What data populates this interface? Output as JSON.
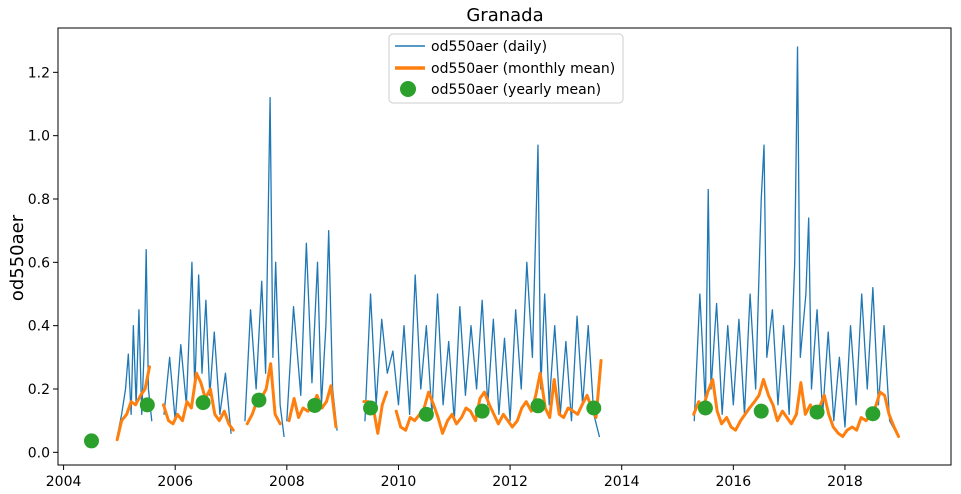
{
  "chart_data": {
    "type": "line",
    "title": "Granada",
    "xlabel": "",
    "ylabel": "od550aer",
    "xlim": [
      2003.9,
      2019.9
    ],
    "ylim": [
      -0.04,
      1.34
    ],
    "x_ticks": [
      2004,
      2006,
      2008,
      2010,
      2012,
      2014,
      2016,
      2018
    ],
    "x_tick_labels": [
      "2004",
      "2006",
      "2008",
      "2010",
      "2012",
      "2014",
      "2016",
      "2018"
    ],
    "y_ticks": [
      0.0,
      0.2,
      0.4,
      0.6,
      0.8,
      1.0,
      1.2
    ],
    "y_tick_labels": [
      "0.0",
      "0.2",
      "0.4",
      "0.6",
      "0.8",
      "1.0",
      "1.2"
    ],
    "grid": false,
    "legend_position": "top-center",
    "legend": [
      "od550aer (daily)",
      "od550aer (monthly mean)",
      "od550aer (yearly mean)"
    ],
    "series": [
      {
        "name": "od550aer (daily)",
        "kind": "line",
        "color": "#1f77b4",
        "segments": [
          {
            "x": [
              2004.95,
              2005.04,
              2005.11,
              2005.16,
              2005.21,
              2005.25,
              2005.3,
              2005.35,
              2005.4,
              2005.45,
              2005.48,
              2005.52,
              2005.58
            ],
            "y": [
              0.04,
              0.12,
              0.2,
              0.31,
              0.12,
              0.4,
              0.15,
              0.45,
              0.12,
              0.35,
              0.64,
              0.2,
              0.1
            ]
          },
          {
            "x": [
              2005.8,
              2005.9,
              2006.0,
              2006.1,
              2006.2,
              2006.3,
              2006.35,
              2006.42,
              2006.48,
              2006.55,
              2006.62,
              2006.7,
              2006.8,
              2006.9,
              2007.0
            ],
            "y": [
              0.12,
              0.3,
              0.1,
              0.34,
              0.15,
              0.6,
              0.2,
              0.56,
              0.25,
              0.48,
              0.18,
              0.38,
              0.12,
              0.25,
              0.06
            ]
          },
          {
            "x": [
              2007.25,
              2007.35,
              2007.45,
              2007.55,
              2007.62,
              2007.68,
              2007.7,
              2007.75,
              2007.8,
              2007.88,
              2007.95
            ],
            "y": [
              0.1,
              0.45,
              0.2,
              0.54,
              0.25,
              0.9,
              1.12,
              0.3,
              0.6,
              0.15,
              0.05
            ]
          },
          {
            "x": [
              2008.0,
              2008.12,
              2008.25,
              2008.35,
              2008.45,
              2008.55,
              2008.62,
              2008.7,
              2008.75,
              2008.82,
              2008.9
            ],
            "y": [
              0.1,
              0.46,
              0.18,
              0.66,
              0.22,
              0.6,
              0.15,
              0.4,
              0.7,
              0.2,
              0.07
            ]
          },
          {
            "x": [
              2009.4,
              2009.5,
              2009.6,
              2009.7,
              2009.8,
              2009.9,
              2010.0,
              2010.1,
              2010.2,
              2010.3,
              2010.4,
              2010.5,
              2010.6,
              2010.7,
              2010.8,
              2010.9,
              2011.0,
              2011.1,
              2011.2,
              2011.3,
              2011.4,
              2011.5,
              2011.6,
              2011.7,
              2011.8,
              2011.9,
              2012.0,
              2012.1,
              2012.2,
              2012.3,
              2012.4,
              2012.5,
              2012.55,
              2012.62,
              2012.7,
              2012.8,
              2012.9,
              2013.0,
              2013.1,
              2013.2,
              2013.3,
              2013.4,
              2013.5,
              2013.6
            ],
            "y": [
              0.1,
              0.5,
              0.15,
              0.42,
              0.25,
              0.32,
              0.15,
              0.4,
              0.12,
              0.56,
              0.2,
              0.4,
              0.12,
              0.5,
              0.15,
              0.35,
              0.1,
              0.46,
              0.18,
              0.4,
              0.2,
              0.48,
              0.15,
              0.42,
              0.12,
              0.36,
              0.1,
              0.45,
              0.2,
              0.6,
              0.3,
              0.97,
              0.2,
              0.5,
              0.15,
              0.4,
              0.12,
              0.35,
              0.1,
              0.43,
              0.15,
              0.4,
              0.12,
              0.05
            ]
          },
          {
            "x": [
              2015.3,
              2015.4,
              2015.5,
              2015.55,
              2015.6,
              2015.7,
              2015.8,
              2015.9,
              2016.0,
              2016.1,
              2016.2,
              2016.3,
              2016.4,
              2016.5,
              2016.55,
              2016.6,
              2016.7,
              2016.8,
              2016.9,
              2017.0,
              2017.1,
              2017.15,
              2017.2,
              2017.3,
              2017.35,
              2017.4,
              2017.5,
              2017.6,
              2017.7,
              2017.8,
              2017.9,
              2018.0,
              2018.1,
              2018.2,
              2018.3,
              2018.4,
              2018.5,
              2018.6,
              2018.7,
              2018.8,
              2018.95
            ],
            "y": [
              0.1,
              0.5,
              0.15,
              0.83,
              0.2,
              0.47,
              0.12,
              0.4,
              0.15,
              0.42,
              0.12,
              0.5,
              0.2,
              0.8,
              0.97,
              0.3,
              0.45,
              0.15,
              0.4,
              0.12,
              0.6,
              1.28,
              0.3,
              0.5,
              0.74,
              0.2,
              0.45,
              0.12,
              0.38,
              0.1,
              0.3,
              0.08,
              0.4,
              0.15,
              0.5,
              0.2,
              0.52,
              0.15,
              0.4,
              0.1,
              0.05
            ]
          }
        ]
      },
      {
        "name": "od550aer (monthly mean)",
        "kind": "line",
        "color": "#ff7f0e",
        "segments": [
          {
            "x": [
              2004.96,
              2005.04,
              2005.13,
              2005.21,
              2005.29,
              2005.38,
              2005.46,
              2005.54
            ],
            "y": [
              0.04,
              0.1,
              0.12,
              0.16,
              0.15,
              0.18,
              0.2,
              0.27
            ]
          },
          {
            "x": [
              2005.79,
              2005.88,
              2005.96,
              2006.04,
              2006.13,
              2006.21,
              2006.29,
              2006.38,
              2006.46,
              2006.54,
              2006.63,
              2006.71,
              2006.79,
              2006.88,
              2006.96,
              2007.04
            ],
            "y": [
              0.15,
              0.1,
              0.09,
              0.12,
              0.1,
              0.16,
              0.14,
              0.25,
              0.22,
              0.17,
              0.2,
              0.12,
              0.1,
              0.13,
              0.09,
              0.07
            ]
          },
          {
            "x": [
              2007.29,
              2007.38,
              2007.46,
              2007.54,
              2007.63,
              2007.71,
              2007.79,
              2007.88
            ],
            "y": [
              0.09,
              0.12,
              0.16,
              0.17,
              0.2,
              0.28,
              0.12,
              0.09
            ]
          },
          {
            "x": [
              2008.04,
              2008.13,
              2008.21,
              2008.29,
              2008.38,
              2008.46,
              2008.54,
              2008.63,
              2008.71,
              2008.79,
              2008.88
            ],
            "y": [
              0.1,
              0.17,
              0.11,
              0.14,
              0.13,
              0.15,
              0.18,
              0.14,
              0.16,
              0.21,
              0.08
            ]
          },
          {
            "x": [
              2009.38,
              2009.46,
              2009.54,
              2009.63,
              2009.71,
              2009.79
            ],
            "y": [
              0.16,
              0.16,
              0.15,
              0.06,
              0.15,
              0.19
            ]
          },
          {
            "x": [
              2009.96,
              2010.04,
              2010.13,
              2010.21,
              2010.29,
              2010.38,
              2010.46,
              2010.54,
              2010.63,
              2010.71,
              2010.79,
              2010.88,
              2010.96,
              2011.04,
              2011.13,
              2011.21,
              2011.29,
              2011.38,
              2011.46,
              2011.54,
              2011.63,
              2011.71,
              2011.79,
              2011.88,
              2011.96,
              2012.04,
              2012.13,
              2012.21,
              2012.29,
              2012.38,
              2012.46,
              2012.54,
              2012.63,
              2012.71,
              2012.79,
              2012.88,
              2012.96,
              2013.04,
              2013.13,
              2013.21,
              2013.29,
              2013.38,
              2013.46,
              2013.54,
              2013.63
            ],
            "y": [
              0.13,
              0.08,
              0.07,
              0.11,
              0.1,
              0.12,
              0.14,
              0.19,
              0.15,
              0.11,
              0.06,
              0.1,
              0.12,
              0.09,
              0.11,
              0.14,
              0.13,
              0.1,
              0.17,
              0.19,
              0.15,
              0.12,
              0.09,
              0.12,
              0.1,
              0.08,
              0.1,
              0.14,
              0.16,
              0.13,
              0.18,
              0.25,
              0.14,
              0.11,
              0.23,
              0.12,
              0.11,
              0.14,
              0.13,
              0.12,
              0.15,
              0.18,
              0.14,
              0.11,
              0.29
            ]
          },
          {
            "x": [
              2015.29,
              2015.38,
              2015.46,
              2015.54,
              2015.63,
              2015.71,
              2015.79,
              2015.88,
              2015.96,
              2016.04,
              2016.13,
              2016.21,
              2016.29,
              2016.38,
              2016.46,
              2016.54,
              2016.63,
              2016.71,
              2016.79,
              2016.88,
              2016.96,
              2017.04,
              2017.13,
              2017.21,
              2017.29,
              2017.38,
              2017.46,
              2017.54,
              2017.63,
              2017.71,
              2017.79,
              2017.88,
              2017.96,
              2018.04,
              2018.13,
              2018.21,
              2018.29,
              2018.38,
              2018.46,
              2018.54,
              2018.63,
              2018.71,
              2018.79,
              2018.88,
              2018.96
            ],
            "y": [
              0.12,
              0.16,
              0.14,
              0.19,
              0.23,
              0.13,
              0.09,
              0.11,
              0.08,
              0.07,
              0.1,
              0.12,
              0.14,
              0.16,
              0.18,
              0.23,
              0.18,
              0.15,
              0.1,
              0.13,
              0.11,
              0.09,
              0.12,
              0.22,
              0.12,
              0.15,
              0.12,
              0.14,
              0.18,
              0.12,
              0.08,
              0.06,
              0.05,
              0.07,
              0.08,
              0.07,
              0.11,
              0.1,
              0.12,
              0.14,
              0.19,
              0.18,
              0.12,
              0.08,
              0.05
            ]
          }
        ]
      },
      {
        "name": "od550aer (yearly mean)",
        "kind": "scatter",
        "color": "#2ca02c",
        "x": [
          2004.5,
          2005.5,
          2006.5,
          2007.5,
          2008.5,
          2009.5,
          2010.5,
          2011.5,
          2012.5,
          2013.5,
          2015.5,
          2016.5,
          2017.5,
          2018.5
        ],
        "y": [
          0.036,
          0.15,
          0.157,
          0.165,
          0.148,
          0.14,
          0.12,
          0.13,
          0.147,
          0.14,
          0.14,
          0.13,
          0.127,
          0.122
        ]
      }
    ]
  }
}
